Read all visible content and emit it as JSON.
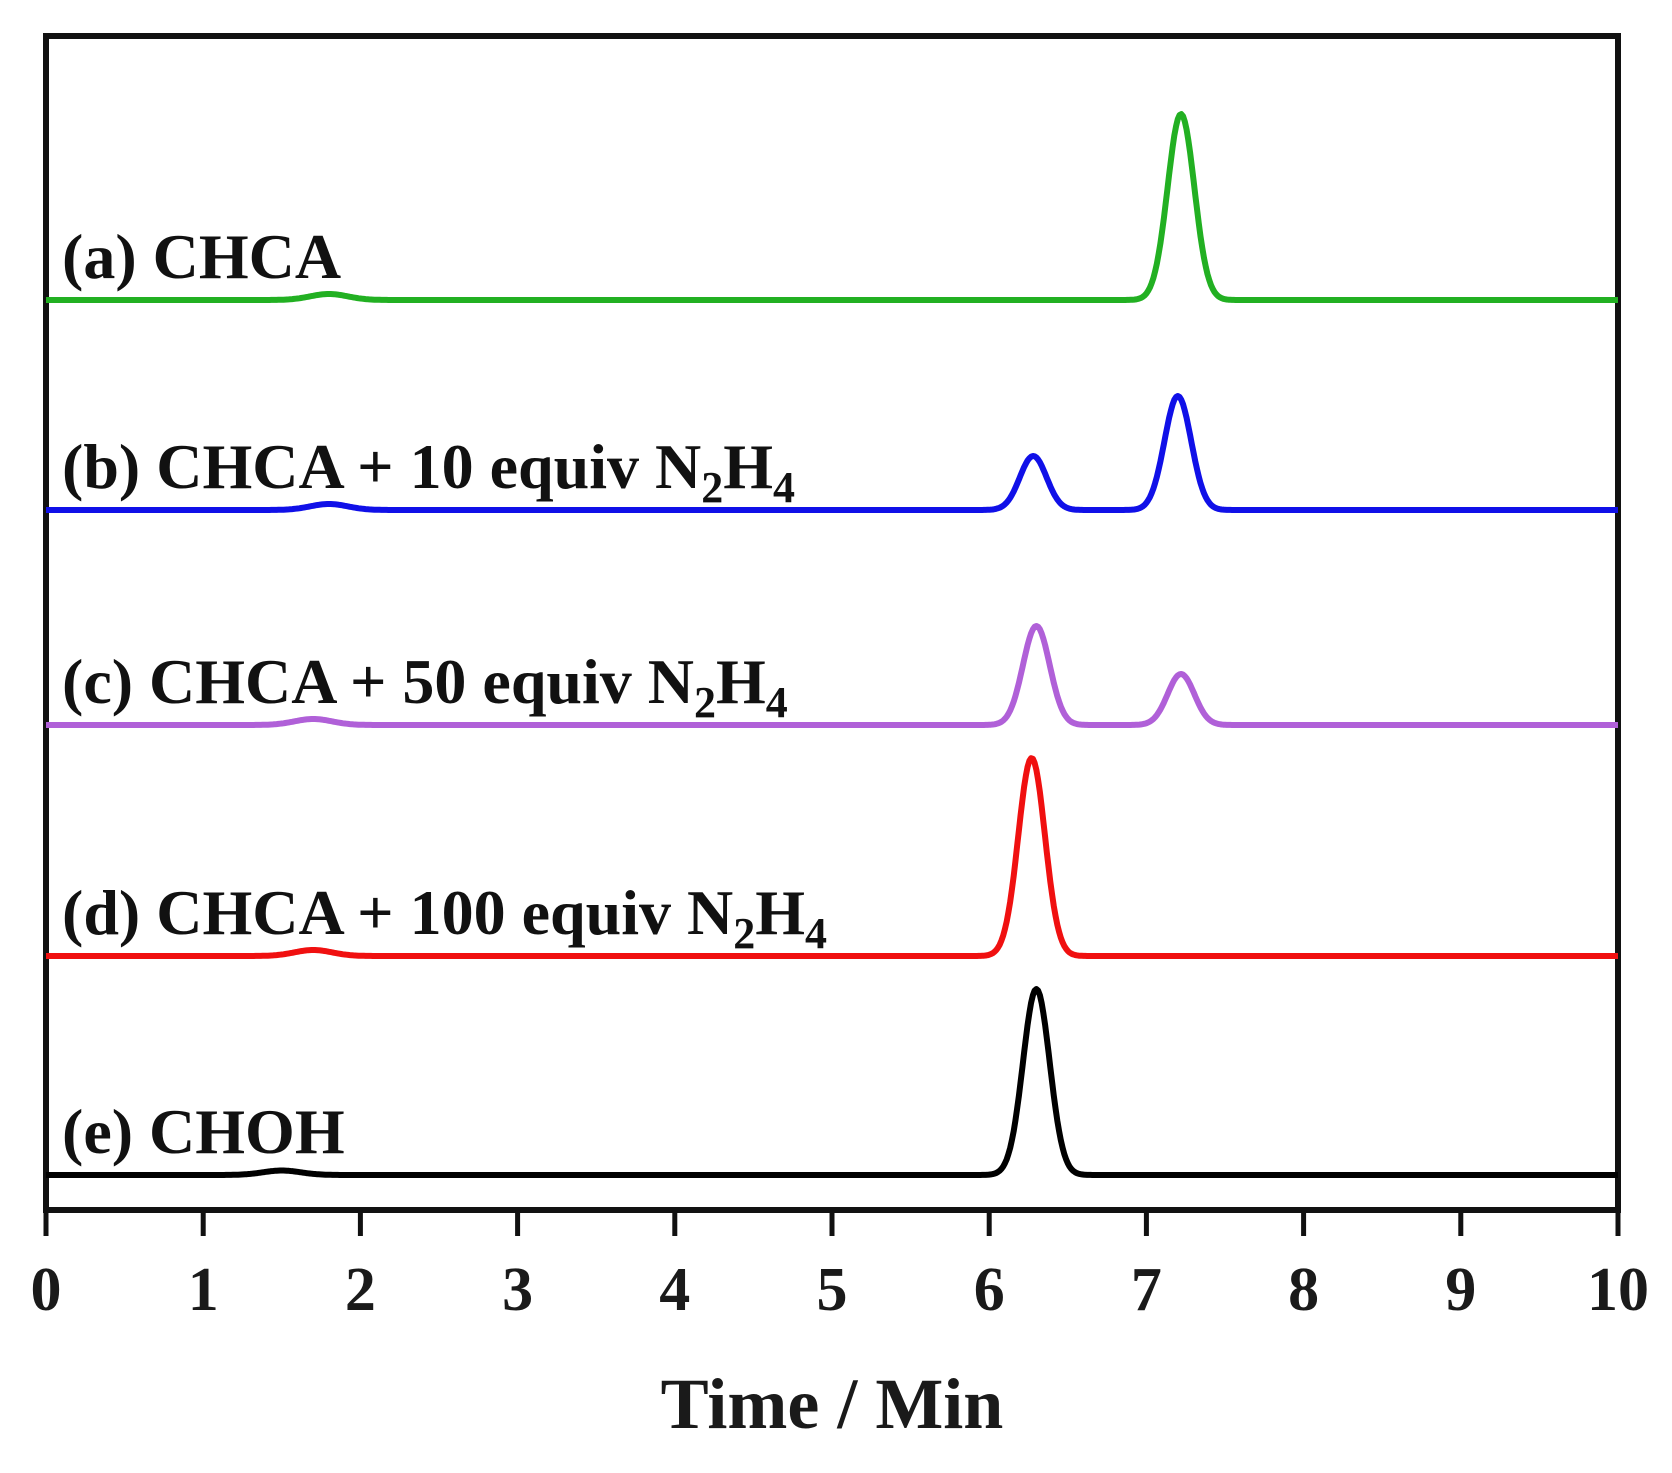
{
  "chart_data": {
    "type": "line",
    "title": "",
    "xlabel": "Time / Min",
    "ylabel": "",
    "xlim": [
      0,
      10
    ],
    "x_ticks": [
      "0",
      "1",
      "2",
      "3",
      "4",
      "5",
      "6",
      "7",
      "8",
      "9",
      "10"
    ],
    "grid": false,
    "legend": "inline labels, left of each trace",
    "series": [
      {
        "id": "a",
        "name": "(a) CHCA",
        "label_parts": {
          "prefix": "(a) CHCA",
          "reagent": "",
          "sub1": "",
          "mid": "",
          "sub2": ""
        },
        "color": "#22b022",
        "baseline_level": 4,
        "small_bump": {
          "t": 1.8,
          "height": 0.02
        },
        "peaks": [
          {
            "t": 7.22,
            "height": 0.62
          }
        ]
      },
      {
        "id": "b",
        "name": "(b) CHCA + 10 equiv N2H4",
        "label_parts": {
          "prefix": "(b) CHCA",
          "reagent": "+ 10 equiv N",
          "sub1": "2",
          "mid": "H",
          "sub2": "4"
        },
        "color": "#1010e8",
        "baseline_level": 3,
        "small_bump": {
          "t": 1.8,
          "height": 0.02
        },
        "peaks": [
          {
            "t": 6.28,
            "height": 0.18
          },
          {
            "t": 7.2,
            "height": 0.38
          }
        ]
      },
      {
        "id": "c",
        "name": "(c) CHCA + 50 equiv N2H4",
        "label_parts": {
          "prefix": "(c) CHCA",
          "reagent": "+ 50 equiv N",
          "sub1": "2",
          "mid": "H",
          "sub2": "4"
        },
        "color": "#b060d8",
        "baseline_level": 2,
        "small_bump": {
          "t": 1.7,
          "height": 0.02
        },
        "peaks": [
          {
            "t": 6.3,
            "height": 0.33
          },
          {
            "t": 7.22,
            "height": 0.17
          }
        ]
      },
      {
        "id": "d",
        "name": "(d) CHCA + 100 equiv N2H4",
        "label_parts": {
          "prefix": "(d) CHCA",
          "reagent": "+ 100 equiv N",
          "sub1": "2",
          "mid": "H",
          "sub2": "4"
        },
        "color": "#f01010",
        "baseline_level": 1,
        "small_bump": {
          "t": 1.7,
          "height": 0.02
        },
        "peaks": [
          {
            "t": 6.27,
            "height": 0.66
          }
        ]
      },
      {
        "id": "e",
        "name": "(e) CHOH",
        "label_parts": {
          "prefix": "(e) CHOH",
          "reagent": "",
          "sub1": "",
          "mid": "",
          "sub2": ""
        },
        "color": "#000000",
        "baseline_level": 0,
        "small_bump": {
          "t": 1.5,
          "height": 0.015
        },
        "peaks": [
          {
            "t": 6.3,
            "height": 0.62
          }
        ]
      }
    ]
  }
}
